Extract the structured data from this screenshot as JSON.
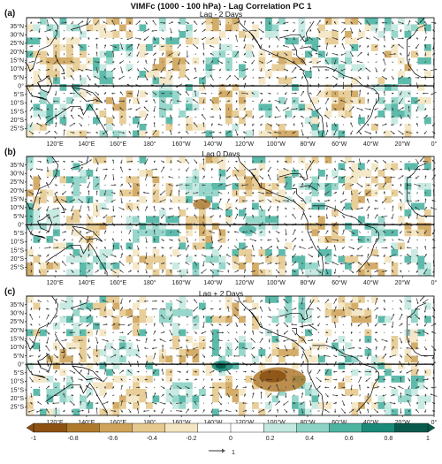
{
  "figure": {
    "title": "VIMFc (1000 - 100 hPa) - Lag Correlation PC 1"
  },
  "panels": [
    {
      "label": "(a)",
      "title": "Lag - 2 Days"
    },
    {
      "label": "(b)",
      "title": "Lag 0 Days"
    },
    {
      "label": "(c)",
      "title": "Lag + 2 Days"
    }
  ],
  "axes": {
    "lat_labels": [
      "35°N",
      "30°N",
      "25°N",
      "20°N",
      "15°N",
      "10°N",
      "5°N",
      "0°",
      "5°S",
      "10°S",
      "15°S",
      "20°S",
      "25°S"
    ],
    "lon_labels": [
      "120°E",
      "140°E",
      "160°E",
      "180°",
      "160°W",
      "140°W",
      "120°W",
      "100°W",
      "80°W",
      "60°W",
      "40°W",
      "20°W",
      "0°"
    ]
  },
  "colorbar": {
    "ticks": [
      "-1",
      "-0.8",
      "-0.6",
      "-0.4",
      "-0.2",
      "0",
      "0.2",
      "0.4",
      "0.6",
      "0.8",
      "1"
    ],
    "colors": [
      "#8c5113",
      "#b07a2e",
      "#cfa45a",
      "#e5c98e",
      "#f4e6c2",
      "#ffffff",
      "#c2e8e0",
      "#8dd3c5",
      "#4db4a2",
      "#1c8a78",
      "#0a5b4d"
    ],
    "vector_key_label": "1"
  },
  "map_style": {
    "coast_color": "#000000",
    "equator_color": "#000000",
    "arrow_color": "#333333"
  }
}
